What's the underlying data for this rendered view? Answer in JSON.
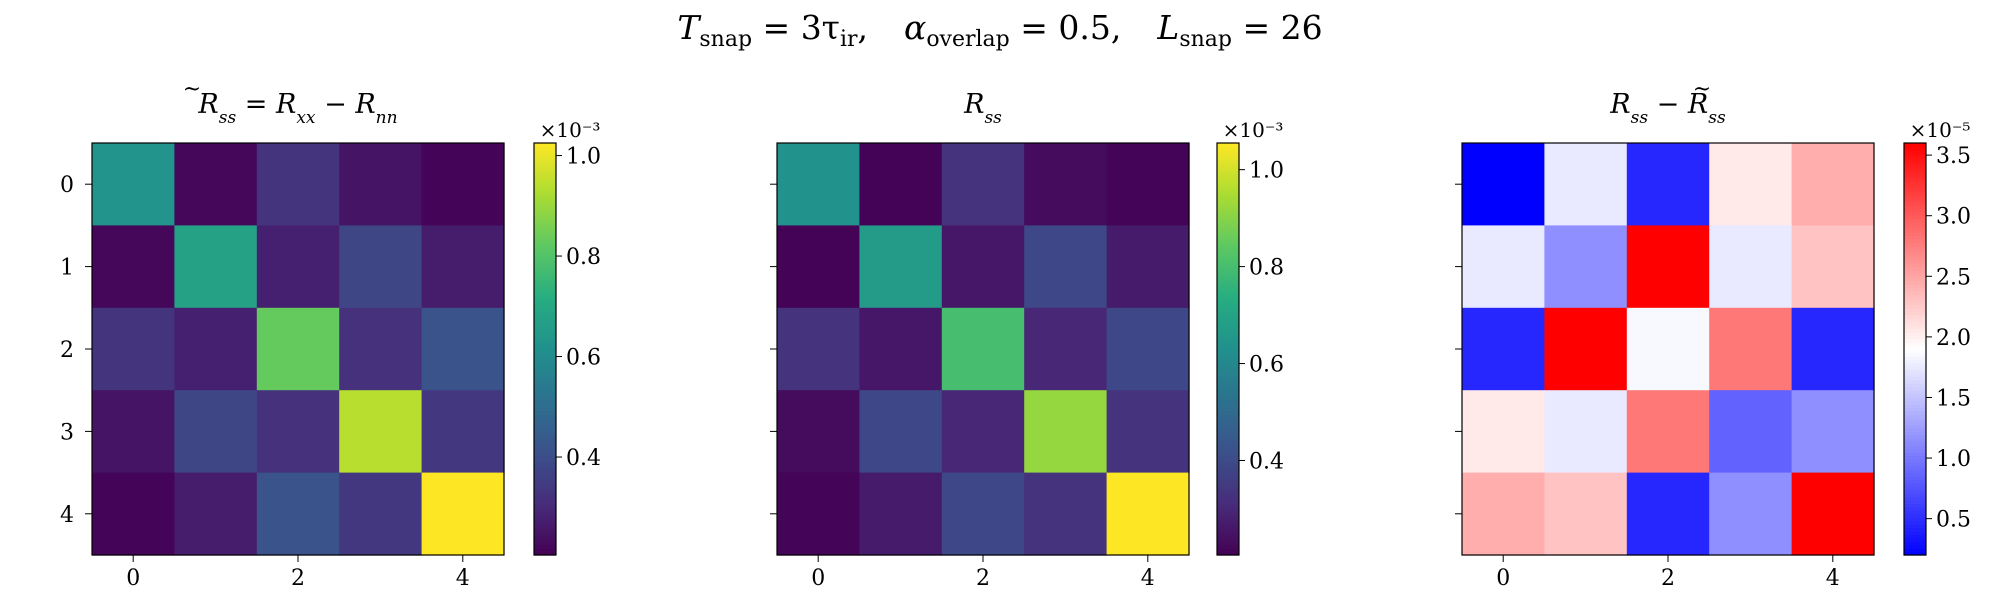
{
  "figure": {
    "suptitle": {
      "T_snap": "3τ",
      "T_snap_sub": "ir",
      "alpha_overlap": "0.5",
      "L_snap": "26"
    }
  },
  "chart_data": [
    {
      "type": "heatmap",
      "title": "R̃_ss = R_xx − R_nn",
      "colormap": "viridis",
      "x_ticks": [
        "0",
        "2",
        "4"
      ],
      "y_ticks": [
        "0",
        "1",
        "2",
        "3",
        "4"
      ],
      "colorbar": {
        "offset_label": "×10⁻³",
        "ticks": [
          "0.4",
          "0.6",
          "0.8",
          "1.0"
        ],
        "range": [
          0.205,
          1.025
        ],
        "tick_values": [
          0.4,
          0.6,
          0.8,
          1.0
        ]
      },
      "values": [
        [
          0.63,
          0.22,
          0.33,
          0.25,
          0.215
        ],
        [
          0.22,
          0.68,
          0.28,
          0.38,
          0.27
        ],
        [
          0.33,
          0.28,
          0.83,
          0.32,
          0.42
        ],
        [
          0.25,
          0.38,
          0.32,
          0.94,
          0.34
        ],
        [
          0.215,
          0.27,
          0.42,
          0.34,
          1.025
        ]
      ]
    },
    {
      "type": "heatmap",
      "title": "R_ss",
      "colormap": "viridis",
      "x_ticks": [
        "0",
        "2",
        "4"
      ],
      "y_ticks": [
        "0",
        "1",
        "2",
        "3",
        "4"
      ],
      "colorbar": {
        "offset_label": "×10⁻³",
        "ticks": [
          "0.4",
          "0.6",
          "0.8",
          "1.0"
        ],
        "range": [
          0.205,
          1.055
        ],
        "tick_values": [
          0.4,
          0.6,
          0.8,
          1.0
        ]
      },
      "values": [
        [
          0.64,
          0.21,
          0.33,
          0.23,
          0.215
        ],
        [
          0.21,
          0.67,
          0.26,
          0.39,
          0.27
        ],
        [
          0.33,
          0.26,
          0.8,
          0.3,
          0.39
        ],
        [
          0.23,
          0.39,
          0.3,
          0.92,
          0.33
        ],
        [
          0.215,
          0.27,
          0.39,
          0.33,
          1.055
        ]
      ]
    },
    {
      "type": "heatmap",
      "title": "R_ss − R̃_ss",
      "colormap": "bwr",
      "x_ticks": [
        "0",
        "2",
        "4"
      ],
      "y_ticks": [
        "0",
        "1",
        "2",
        "3",
        "4"
      ],
      "colorbar": {
        "offset_label": "×10⁻⁵",
        "ticks": [
          "0.5",
          "1.0",
          "1.5",
          "2.0",
          "2.5",
          "3.0",
          "3.5"
        ],
        "range": [
          0.2,
          3.6
        ],
        "tick_values": [
          0.5,
          1.0,
          1.5,
          2.0,
          2.5,
          3.0,
          3.5
        ]
      },
      "values": [
        [
          0.2,
          1.75,
          0.45,
          2.05,
          2.45
        ],
        [
          1.75,
          1.15,
          3.6,
          1.75,
          2.3
        ],
        [
          0.45,
          3.6,
          1.85,
          2.8,
          0.45
        ],
        [
          2.05,
          1.75,
          2.8,
          0.85,
          1.15
        ],
        [
          2.45,
          2.3,
          0.45,
          1.15,
          3.6
        ]
      ]
    }
  ]
}
